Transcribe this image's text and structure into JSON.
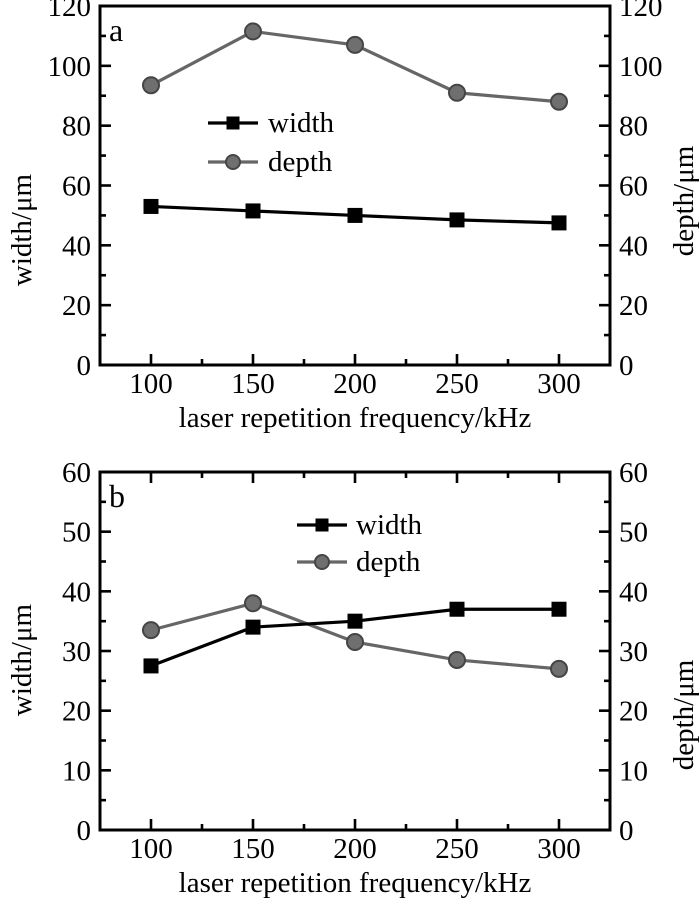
{
  "figure": {
    "background_color": "#ffffff",
    "frame_color": "#000000",
    "text_color": "#000000",
    "x_axis_title": "laser repetition frequency/kHz",
    "left_axis_title": "width/μm",
    "right_axis_title": "depth/μm"
  },
  "chart_data": [
    {
      "type": "line",
      "panel_label": "a",
      "xlabel": "laser repetition frequency/kHz",
      "ylabel_left": "width/μm",
      "ylabel_right": "depth/μm",
      "x": [
        100,
        150,
        200,
        250,
        300
      ],
      "xlim": [
        75,
        325
      ],
      "x_major_ticks": [
        100,
        150,
        200,
        250,
        300
      ],
      "x_minor_ticks": [
        125,
        175,
        225,
        275
      ],
      "ylim": [
        0,
        120
      ],
      "y_major_ticks": [
        0,
        20,
        40,
        60,
        80,
        100,
        120
      ],
      "grid": false,
      "legend_position": "inside upper-left-center",
      "top_edge_ticks": false,
      "series": [
        {
          "name": "width",
          "marker": "square",
          "line_color": "#000000",
          "marker_fill": "#000000",
          "marker_edge": "#000000",
          "values": [
            53,
            51.5,
            50,
            48.5,
            47.5
          ]
        },
        {
          "name": "depth",
          "marker": "circle",
          "line_color": "#666666",
          "marker_fill": "#6f6f6f",
          "marker_edge": "#454545",
          "values": [
            93.5,
            111.5,
            107,
            91,
            88
          ]
        }
      ]
    },
    {
      "type": "line",
      "panel_label": "b",
      "xlabel": "laser repetition frequency/kHz",
      "ylabel_left": "width/μm",
      "ylabel_right": "depth/μm",
      "x": [
        100,
        150,
        200,
        250,
        300
      ],
      "xlim": [
        75,
        325
      ],
      "x_major_ticks": [
        100,
        150,
        200,
        250,
        300
      ],
      "x_minor_ticks": [
        125,
        175,
        225,
        275
      ],
      "ylim": [
        0,
        60
      ],
      "y_major_ticks": [
        0,
        10,
        20,
        30,
        40,
        50,
        60
      ],
      "grid": false,
      "legend_position": "inside upper-right-center",
      "top_edge_ticks": true,
      "series": [
        {
          "name": "width",
          "marker": "square",
          "line_color": "#000000",
          "marker_fill": "#000000",
          "marker_edge": "#000000",
          "values": [
            27.5,
            34,
            35,
            37,
            37
          ]
        },
        {
          "name": "depth",
          "marker": "circle",
          "line_color": "#666666",
          "marker_fill": "#6f6f6f",
          "marker_edge": "#454545",
          "values": [
            33.5,
            38,
            31.5,
            28.5,
            27
          ]
        }
      ]
    }
  ]
}
